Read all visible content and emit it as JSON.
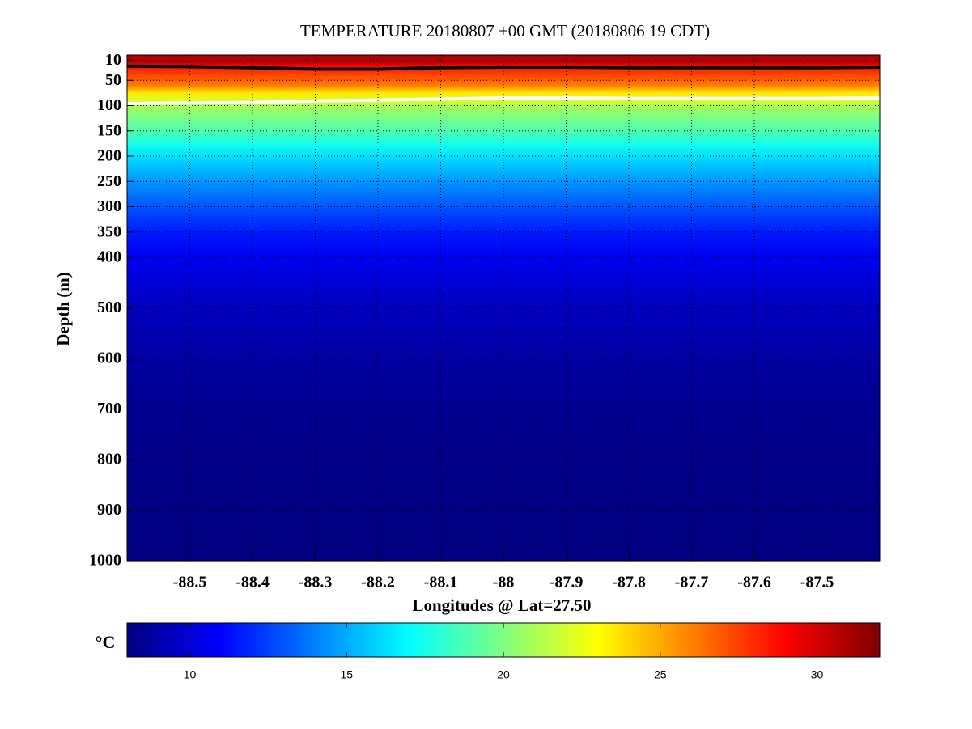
{
  "chart_data": {
    "type": "section",
    "title": "TEMPERATURE 20180807 +00 GMT (20180806 19 CDT)",
    "xlabel": "Longitudes @ Lat=27.50",
    "ylabel": "Depth (m)",
    "xlim": [
      -88.6,
      -87.4
    ],
    "xticks": [
      -88.5,
      -88.4,
      -88.3,
      -88.2,
      -88.1,
      -88,
      -87.9,
      -87.8,
      -87.7,
      -87.6,
      -87.5
    ],
    "ylim": [
      1000,
      0
    ],
    "yticks": [
      10,
      50,
      100,
      150,
      200,
      250,
      300,
      350,
      400,
      500,
      600,
      700,
      800,
      900,
      1000
    ],
    "grid": true,
    "depths": [
      0,
      10,
      15,
      20,
      30,
      40,
      50,
      60,
      75,
      90,
      100,
      120,
      150,
      175,
      200,
      250,
      300,
      350,
      400,
      450,
      500,
      600,
      700,
      800,
      1000
    ],
    "values": [
      30.8,
      30.8,
      30.5,
      29,
      28,
      27.3,
      26.7,
      26,
      23.5,
      22,
      21,
      20,
      18.8,
      17.5,
      16.3,
      14.5,
      13,
      11.6,
      10.6,
      10,
      9.5,
      8.8,
      8.4,
      8.2,
      8
    ],
    "contour_x": [
      -88.6,
      -88.5,
      -88.4,
      -88.3,
      -88.2,
      -88.1,
      -88,
      -87.9,
      -87.8,
      -87.7,
      -87.6,
      -87.5,
      -87.4
    ],
    "contours": [
      {
        "color": "#000000",
        "values": [
          22,
          23,
          25,
          28,
          28,
          25,
          24,
          24,
          25,
          25,
          25,
          25,
          24
        ]
      },
      {
        "color": "#ffffff",
        "values": [
          96,
          95,
          94,
          91,
          89,
          87,
          85,
          85,
          86,
          86,
          86,
          86,
          85
        ]
      }
    ],
    "colorbar_label": "°C",
    "clim": [
      8,
      32
    ],
    "cticks": [
      10,
      15,
      20,
      25,
      30
    ]
  }
}
